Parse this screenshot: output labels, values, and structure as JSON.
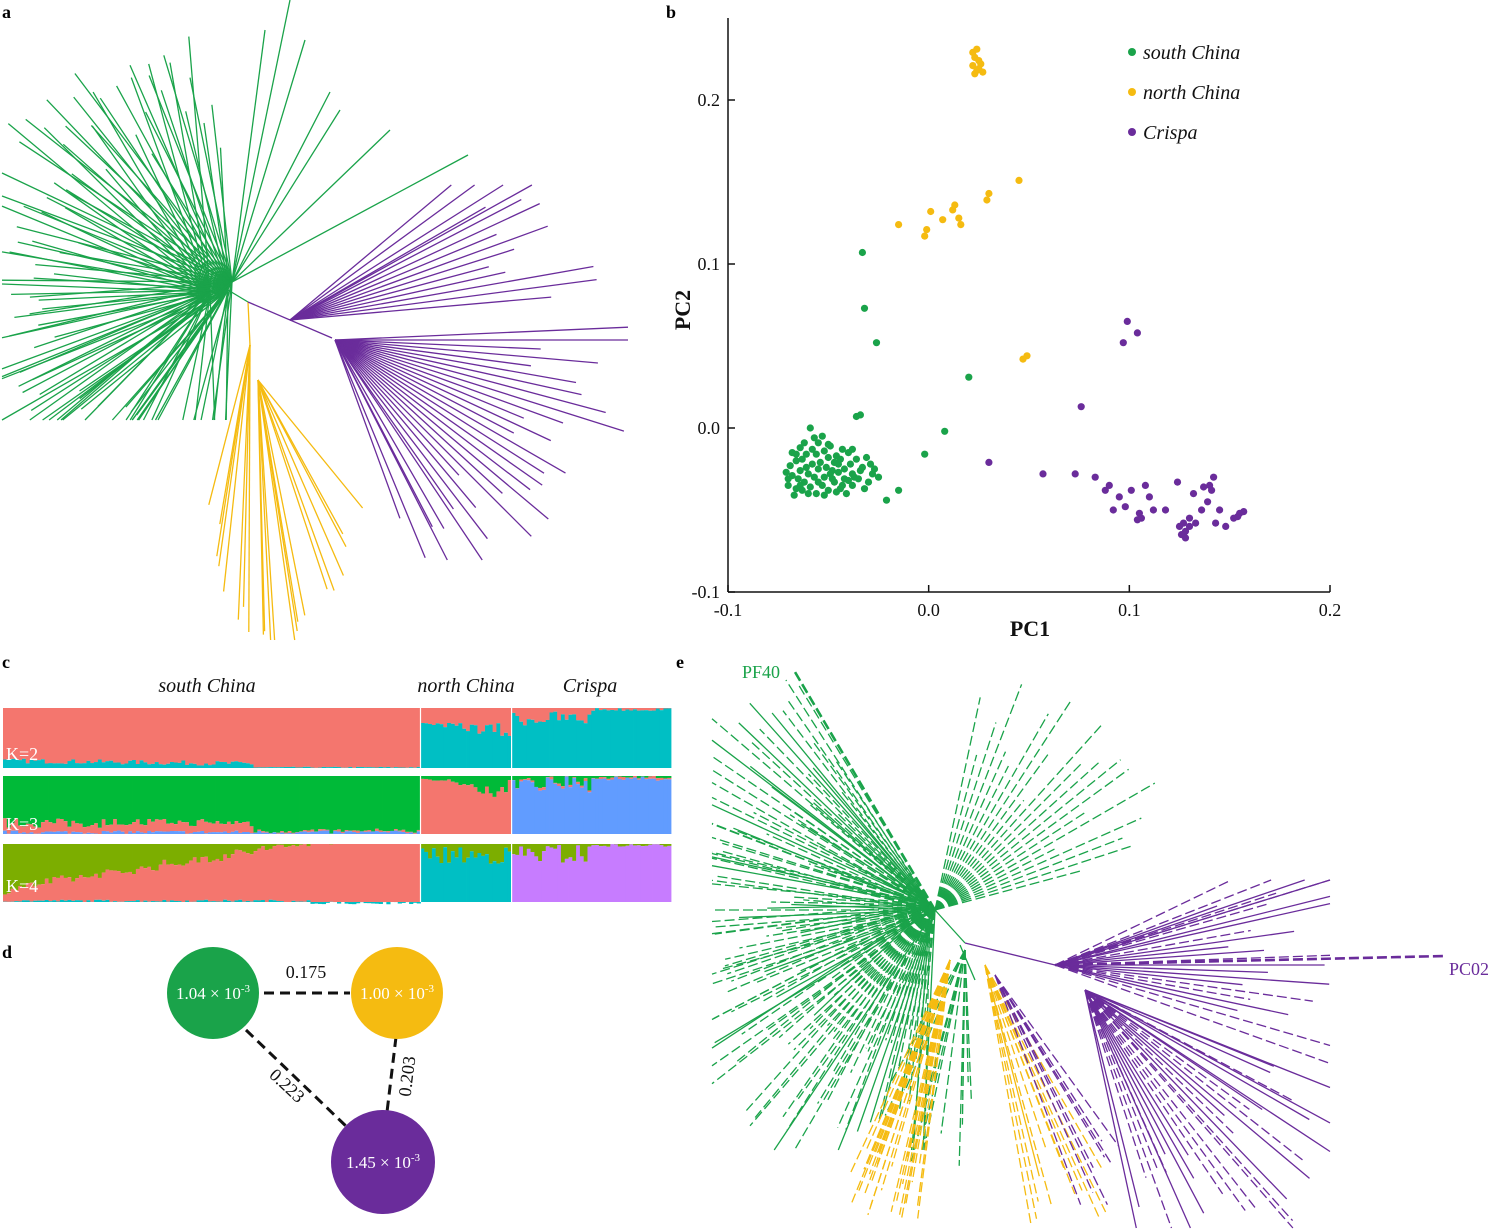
{
  "colors": {
    "south": "#1aa34a",
    "north": "#f5bb11",
    "crispa": "#6a2c9b",
    "k_red": "#f4766e",
    "k_cyan": "#00bfc4",
    "k_green": "#00ba38",
    "k_blue": "#619cff",
    "k_olive": "#7cae00",
    "k_pink": "#c77cff"
  },
  "panels": {
    "a": "a",
    "b": "b",
    "c": "c",
    "d": "d",
    "e": "e"
  },
  "chart_data": [
    {
      "id": "a",
      "type": "unrooted-tree",
      "groups": [
        "south China",
        "north China",
        "Crispa"
      ],
      "approx_tips": {
        "south China": 110,
        "north China": 20,
        "Crispa": 45
      }
    },
    {
      "id": "b",
      "type": "scatter",
      "xlabel": "PC1",
      "ylabel": "PC2",
      "xlim": [
        -0.1,
        0.2
      ],
      "ylim": [
        -0.1,
        0.25
      ],
      "xticks": [
        "-0.1",
        "0.0",
        "0.1",
        "0.2"
      ],
      "yticks": [
        "-0.1",
        "0.0",
        "0.1",
        "0.2"
      ],
      "legend_position": "top-right",
      "series": [
        {
          "name": "south China",
          "color": "#1aa34a",
          "points": [
            [
              -0.033,
              0.107
            ],
            [
              -0.032,
              0.073
            ],
            [
              -0.026,
              0.052
            ],
            [
              0.02,
              0.031
            ],
            [
              0.008,
              -0.002
            ],
            [
              -0.002,
              -0.016
            ],
            [
              -0.036,
              0.007
            ],
            [
              -0.034,
              0.008
            ],
            [
              -0.015,
              -0.038
            ],
            [
              -0.021,
              -0.044
            ],
            [
              -0.025,
              -0.03
            ],
            [
              -0.027,
              -0.025
            ],
            [
              -0.04,
              -0.015
            ],
            [
              -0.038,
              -0.028
            ],
            [
              -0.042,
              -0.031
            ],
            [
              -0.045,
              -0.022
            ],
            [
              -0.048,
              -0.026
            ],
            [
              -0.05,
              -0.018
            ],
            [
              -0.052,
              -0.03
            ],
            [
              -0.055,
              -0.025
            ],
            [
              -0.058,
              -0.022
            ],
            [
              -0.06,
              -0.028
            ],
            [
              -0.062,
              -0.033
            ],
            [
              -0.064,
              -0.026
            ],
            [
              -0.066,
              -0.02
            ],
            [
              -0.068,
              -0.029
            ],
            [
              -0.07,
              -0.035
            ],
            [
              -0.067,
              -0.041
            ],
            [
              -0.063,
              -0.038
            ],
            [
              -0.059,
              -0.036
            ],
            [
              -0.056,
              -0.04
            ],
            [
              -0.053,
              -0.035
            ],
            [
              -0.05,
              -0.038
            ],
            [
              -0.047,
              -0.033
            ],
            [
              -0.044,
              -0.037
            ],
            [
              -0.041,
              -0.04
            ],
            [
              -0.038,
              -0.035
            ],
            [
              -0.035,
              -0.031
            ],
            [
              -0.033,
              -0.024
            ],
            [
              -0.036,
              -0.019
            ],
            [
              -0.039,
              -0.022
            ],
            [
              -0.043,
              -0.013
            ],
            [
              -0.046,
              -0.017
            ],
            [
              -0.049,
              -0.011
            ],
            [
              -0.052,
              -0.014
            ],
            [
              -0.055,
              -0.009
            ],
            [
              -0.058,
              -0.013
            ],
            [
              -0.061,
              -0.016
            ],
            [
              -0.064,
              -0.012
            ],
            [
              -0.066,
              -0.016
            ],
            [
              -0.069,
              -0.023
            ],
            [
              -0.071,
              -0.027
            ],
            [
              -0.065,
              -0.031
            ],
            [
              -0.061,
              -0.024
            ],
            [
              -0.057,
              -0.03
            ],
            [
              -0.054,
              -0.021
            ],
            [
              -0.051,
              -0.024
            ],
            [
              -0.048,
              -0.031
            ],
            [
              -0.045,
              -0.027
            ],
            [
              -0.042,
              -0.025
            ],
            [
              -0.04,
              -0.032
            ],
            [
              -0.037,
              -0.03
            ],
            [
              -0.034,
              -0.026
            ],
            [
              -0.031,
              -0.018
            ],
            [
              -0.029,
              -0.022
            ],
            [
              -0.03,
              -0.033
            ],
            [
              -0.032,
              -0.037
            ],
            [
              -0.028,
              -0.028
            ],
            [
              -0.06,
              -0.04
            ],
            [
              -0.063,
              -0.019
            ],
            [
              -0.057,
              -0.006
            ],
            [
              -0.053,
              -0.005
            ],
            [
              -0.059,
              0.0
            ],
            [
              -0.05,
              -0.01
            ],
            [
              -0.068,
              -0.015
            ],
            [
              -0.07,
              -0.031
            ],
            [
              -0.064,
              -0.035
            ],
            [
              -0.055,
              -0.033
            ],
            [
              -0.052,
              -0.041
            ],
            [
              -0.046,
              -0.039
            ],
            [
              -0.043,
              -0.035
            ],
            [
              -0.049,
              -0.028
            ],
            [
              -0.056,
              -0.016
            ],
            [
              -0.062,
              -0.009
            ],
            [
              -0.066,
              -0.037
            ],
            [
              -0.044,
              -0.019
            ],
            [
              -0.038,
              -0.013
            ],
            [
              -0.047,
              -0.021
            ]
          ]
        },
        {
          "name": "north China",
          "color": "#f5bb11",
          "points": [
            [
              0.022,
              0.229
            ],
            [
              0.023,
              0.226
            ],
            [
              0.024,
              0.231
            ],
            [
              0.025,
              0.224
            ],
            [
              0.022,
              0.221
            ],
            [
              0.024,
              0.218
            ],
            [
              0.026,
              0.222
            ],
            [
              0.023,
              0.216
            ],
            [
              0.025,
              0.219
            ],
            [
              0.027,
              0.217
            ],
            [
              0.045,
              0.151
            ],
            [
              0.03,
              0.143
            ],
            [
              0.029,
              0.139
            ],
            [
              0.013,
              0.136
            ],
            [
              0.012,
              0.133
            ],
            [
              0.015,
              0.128
            ],
            [
              0.016,
              0.124
            ],
            [
              0.001,
              0.132
            ],
            [
              -0.001,
              0.121
            ],
            [
              -0.002,
              0.117
            ],
            [
              -0.015,
              0.124
            ],
            [
              0.007,
              0.127
            ],
            [
              0.049,
              0.044
            ],
            [
              0.047,
              0.042
            ]
          ]
        },
        {
          "name": "Crispa",
          "color": "#6a2c9b",
          "points": [
            [
              0.099,
              0.065
            ],
            [
              0.104,
              0.058
            ],
            [
              0.097,
              0.052
            ],
            [
              0.076,
              0.013
            ],
            [
              0.03,
              -0.021
            ],
            [
              0.057,
              -0.028
            ],
            [
              0.073,
              -0.028
            ],
            [
              0.083,
              -0.03
            ],
            [
              0.088,
              -0.038
            ],
            [
              0.09,
              -0.035
            ],
            [
              0.095,
              -0.042
            ],
            [
              0.101,
              -0.038
            ],
            [
              0.108,
              -0.035
            ],
            [
              0.11,
              -0.042
            ],
            [
              0.098,
              -0.048
            ],
            [
              0.092,
              -0.05
            ],
            [
              0.105,
              -0.052
            ],
            [
              0.112,
              -0.05
            ],
            [
              0.106,
              -0.055
            ],
            [
              0.104,
              -0.056
            ],
            [
              0.124,
              -0.033
            ],
            [
              0.132,
              -0.04
            ],
            [
              0.136,
              -0.05
            ],
            [
              0.13,
              -0.055
            ],
            [
              0.127,
              -0.058
            ],
            [
              0.125,
              -0.06
            ],
            [
              0.128,
              -0.063
            ],
            [
              0.13,
              -0.06
            ],
            [
              0.133,
              -0.058
            ],
            [
              0.126,
              -0.065
            ],
            [
              0.128,
              -0.067
            ],
            [
              0.14,
              -0.035
            ],
            [
              0.142,
              -0.03
            ],
            [
              0.141,
              -0.038
            ],
            [
              0.139,
              -0.045
            ],
            [
              0.145,
              -0.05
            ],
            [
              0.148,
              -0.06
            ],
            [
              0.152,
              -0.055
            ],
            [
              0.155,
              -0.052
            ],
            [
              0.157,
              -0.051
            ],
            [
              0.154,
              -0.054
            ],
            [
              0.137,
              -0.036
            ],
            [
              0.143,
              -0.058
            ],
            [
              0.118,
              -0.05
            ]
          ]
        }
      ]
    },
    {
      "id": "c",
      "type": "admixture-bar",
      "groups": [
        {
          "name": "south China",
          "n": 110
        },
        {
          "name": "north China",
          "n": 24
        },
        {
          "name": "Crispa",
          "n": 42
        }
      ],
      "rows": [
        {
          "label": "K=2",
          "components": [
            "#f4766e",
            "#00bfc4"
          ]
        },
        {
          "label": "K=3",
          "components": [
            "#00ba38",
            "#f4766e",
            "#619cff"
          ]
        },
        {
          "label": "K=4",
          "components": [
            "#7cae00",
            "#f4766e",
            "#00bfc4",
            "#c77cff"
          ]
        }
      ]
    },
    {
      "id": "d",
      "type": "network",
      "nodes": [
        {
          "name": "south China",
          "label": "1.04 × 10",
          "exp": "-3",
          "color": "#1aa34a"
        },
        {
          "name": "north China",
          "label": "1.00 × 10",
          "exp": "-3",
          "color": "#f5bb11"
        },
        {
          "name": "Crispa",
          "label": "1.45 × 10",
          "exp": "-3",
          "color": "#6a2c9b"
        }
      ],
      "edges": [
        {
          "from": "south China",
          "to": "north China",
          "value": "0.175"
        },
        {
          "from": "south China",
          "to": "Crispa",
          "value": "0.223"
        },
        {
          "from": "north China",
          "to": "Crispa",
          "value": "0.203"
        }
      ]
    },
    {
      "id": "e",
      "type": "unrooted-tree",
      "tip_labels": [
        {
          "text": "PF40",
          "color": "#1aa34a"
        },
        {
          "text": "PC02",
          "color": "#6a2c9b"
        }
      ]
    }
  ]
}
